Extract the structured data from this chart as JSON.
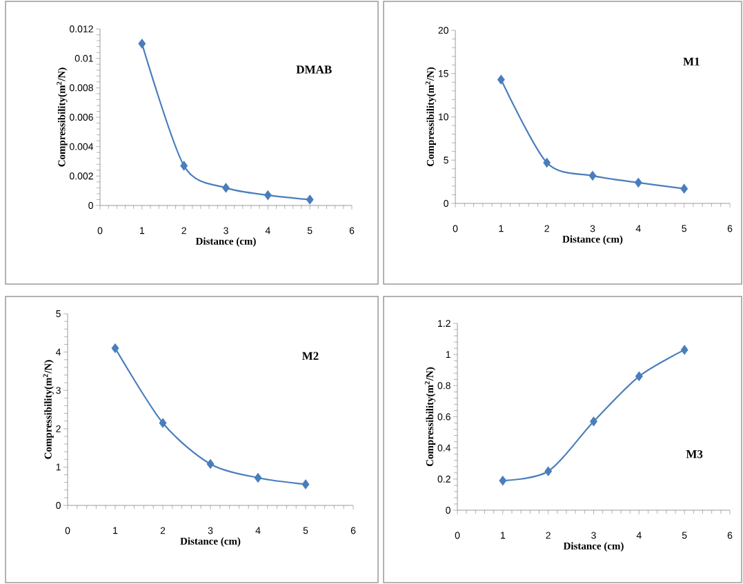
{
  "chart_data": [
    {
      "type": "line",
      "title": "DMAB",
      "xlabel": "Distance (cm)",
      "ylabel": "Compressibility(m$^{2}$/N)",
      "x": [
        1,
        2,
        3,
        4,
        5
      ],
      "values": [
        0.011,
        0.0027,
        0.0012,
        0.0007,
        0.0004
      ],
      "color": "#4a7ebb",
      "marker": "diamond",
      "xlim": [
        0,
        6
      ],
      "ylim": [
        0,
        0.012
      ],
      "xticks": [
        0,
        1,
        2,
        3,
        4,
        5,
        6
      ],
      "yticks": [
        0,
        0.002,
        0.004,
        0.006,
        0.008,
        0.01,
        0.012
      ]
    },
    {
      "type": "line",
      "title": "M1",
      "xlabel": "Distance (cm)",
      "ylabel": "Compressibility(m$^{2}$/N)",
      "x": [
        1,
        2,
        3,
        4,
        5
      ],
      "values": [
        14.3,
        4.7,
        3.2,
        2.4,
        1.7
      ],
      "color": "#4a7ebb",
      "marker": "diamond",
      "xlim": [
        0,
        6
      ],
      "ylim": [
        0,
        20
      ],
      "xticks": [
        0,
        1,
        2,
        3,
        4,
        5,
        6
      ],
      "yticks": [
        0,
        5,
        10,
        15,
        20
      ]
    },
    {
      "type": "line",
      "title": "M2",
      "xlabel": "Distance (cm)",
      "ylabel": "Compressibility(m$^{2}$/N)",
      "x": [
        1,
        2,
        3,
        4,
        5
      ],
      "values": [
        4.1,
        2.15,
        1.08,
        0.72,
        0.55
      ],
      "color": "#4a7ebb",
      "marker": "diamond",
      "xlim": [
        0,
        6
      ],
      "ylim": [
        0,
        5
      ],
      "xticks": [
        0,
        1,
        2,
        3,
        4,
        5,
        6
      ],
      "yticks": [
        0,
        1,
        2,
        3,
        4,
        5
      ]
    },
    {
      "type": "line",
      "title": "M3",
      "xlabel": "Distance (cm)",
      "ylabel": "Compressibility(m$^{2}$/N)",
      "x": [
        1,
        2,
        3,
        4,
        5
      ],
      "values": [
        0.19,
        0.25,
        0.57,
        0.86,
        1.03
      ],
      "color": "#4a7ebb",
      "marker": "diamond",
      "xlim": [
        0,
        6
      ],
      "ylim": [
        0,
        1.2
      ],
      "xticks": [
        0,
        1,
        2,
        3,
        4,
        5,
        6
      ],
      "yticks": [
        0,
        0.2,
        0.4,
        0.6,
        0.8,
        1,
        1.2
      ]
    }
  ]
}
